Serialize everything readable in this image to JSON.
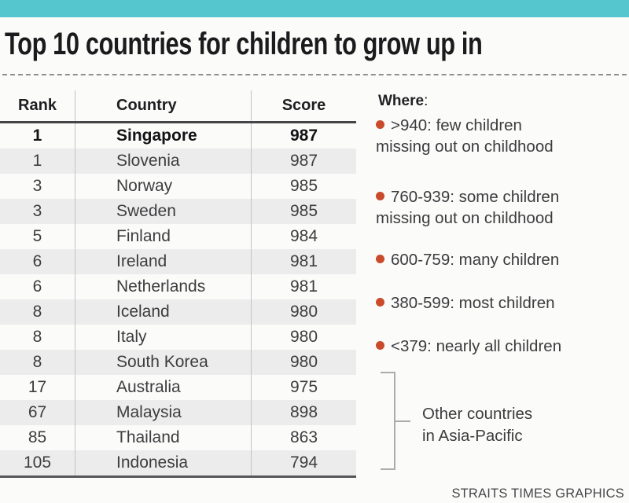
{
  "title": "Top 10 countries for children to grow up in",
  "table": {
    "headers": [
      "Rank",
      "Country",
      "Score"
    ],
    "rows": [
      {
        "rank": "1",
        "country": "Singapore",
        "score": "987"
      },
      {
        "rank": "1",
        "country": "Slovenia",
        "score": "987"
      },
      {
        "rank": "3",
        "country": "Norway",
        "score": "985"
      },
      {
        "rank": "3",
        "country": "Sweden",
        "score": "985"
      },
      {
        "rank": "5",
        "country": "Finland",
        "score": "984"
      },
      {
        "rank": "6",
        "country": "Ireland",
        "score": "981"
      },
      {
        "rank": "6",
        "country": "Netherlands",
        "score": "981"
      },
      {
        "rank": "8",
        "country": "Iceland",
        "score": "980"
      },
      {
        "rank": "8",
        "country": "Italy",
        "score": "980"
      },
      {
        "rank": "8",
        "country": "South Korea",
        "score": "980"
      },
      {
        "rank": "17",
        "country": "Australia",
        "score": "975"
      },
      {
        "rank": "67",
        "country": "Malaysia",
        "score": "898"
      },
      {
        "rank": "85",
        "country": "Thailand",
        "score": "863"
      },
      {
        "rank": "105",
        "country": "Indonesia",
        "score": "794"
      }
    ]
  },
  "legend": {
    "title": "Where",
    "colon": ":",
    "items": [
      {
        "text": ">940: few children",
        "text2": "missing out on childhood"
      },
      {
        "text": "760-939: some children",
        "text2": "missing out on childhood"
      },
      {
        "text": "600-759: many children"
      },
      {
        "text": "380-599: most children"
      },
      {
        "text": "<379: nearly all children"
      }
    ]
  },
  "annotation": {
    "line1": "Other countries",
    "line2": "in Asia-Pacific"
  },
  "credit": "STRAITS TIMES GRAPHICS",
  "colors": {
    "accent_bar": "#55c5ce",
    "bullet": "#c94b2b",
    "row_alt": "#ececec"
  },
  "chart_data": {
    "type": "table",
    "title": "Top 10 countries for children to grow up in",
    "columns": [
      "Rank",
      "Country",
      "Score"
    ],
    "rows": [
      [
        1,
        "Singapore",
        987
      ],
      [
        1,
        "Slovenia",
        987
      ],
      [
        3,
        "Norway",
        985
      ],
      [
        3,
        "Sweden",
        985
      ],
      [
        5,
        "Finland",
        984
      ],
      [
        6,
        "Ireland",
        981
      ],
      [
        6,
        "Netherlands",
        981
      ],
      [
        8,
        "Iceland",
        980
      ],
      [
        8,
        "Italy",
        980
      ],
      [
        8,
        "South Korea",
        980
      ],
      [
        17,
        "Australia",
        975
      ],
      [
        67,
        "Malaysia",
        898
      ],
      [
        85,
        "Thailand",
        863
      ],
      [
        105,
        "Indonesia",
        794
      ]
    ],
    "highlighted_row": "Singapore",
    "legend_title": "Where:",
    "legend": [
      ">940: few children missing out on childhood",
      "760-939: some children missing out on childhood",
      "600-759: many children",
      "380-599: most children",
      "<379: nearly all children"
    ],
    "annotations": [
      "Other countries in Asia-Pacific (bracket over Australia, Malaysia, Thailand, Indonesia)"
    ],
    "source": "STRAITS TIMES GRAPHICS"
  }
}
